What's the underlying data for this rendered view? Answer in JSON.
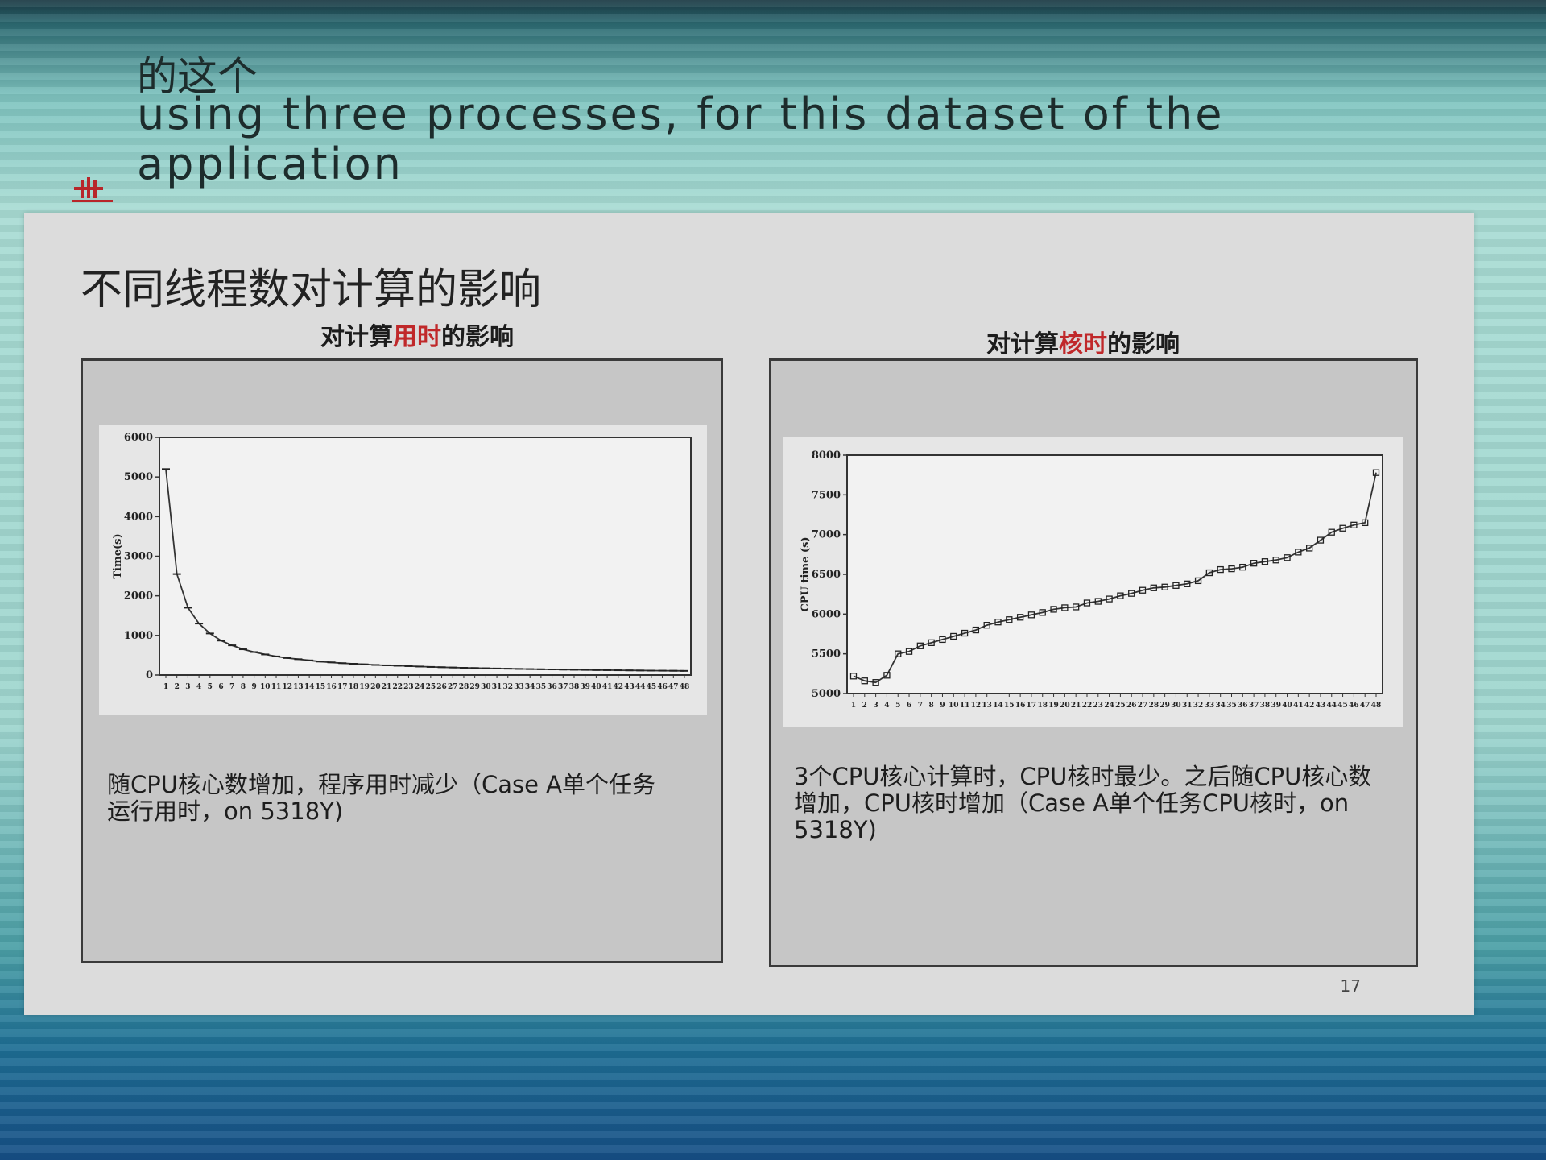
{
  "overlay": {
    "subtitle_zh": "的这个",
    "subtitle_en_line1": "using three processes, for this dataset of the",
    "subtitle_en_line2": "application"
  },
  "slide": {
    "title": "不同线程数对计算的影响",
    "page_number": "17",
    "left_panel": {
      "title_a": "对计算",
      "title_b": "用时",
      "title_c": "的影响",
      "caption_line1": "随CPU核心数增加，程序用时减少（Case A单个任务",
      "caption_line2": "运行用时，on 5318Y)"
    },
    "right_panel": {
      "title_a": "对计算",
      "title_b": "核时",
      "title_c": "的影响",
      "caption_line1": "3个CPU核心计算时，CPU核时最少。之后随CPU核心数",
      "caption_line2": "增加，CPU核时增加（Case A单个任务CPU核时，on",
      "caption_line3": "5318Y)"
    }
  },
  "colors": {
    "highlight": "#c0282a",
    "line": "#333333"
  },
  "chart_data": [
    {
      "type": "line",
      "title": "",
      "xlabel": "",
      "ylabel": "Time(s)",
      "ylim": [
        0,
        6000
      ],
      "yticks": [
        0,
        1000,
        2000,
        3000,
        4000,
        5000,
        6000
      ],
      "x": [
        1,
        2,
        3,
        4,
        5,
        6,
        7,
        8,
        9,
        10,
        11,
        12,
        13,
        14,
        15,
        16,
        17,
        18,
        19,
        20,
        21,
        22,
        23,
        24,
        25,
        26,
        27,
        28,
        29,
        30,
        31,
        32,
        33,
        34,
        35,
        36,
        37,
        38,
        39,
        40,
        41,
        42,
        43,
        44,
        45,
        46,
        47,
        48
      ],
      "series": [
        {
          "values": [
            5200,
            2550,
            1700,
            1300,
            1050,
            870,
            750,
            650,
            580,
            520,
            470,
            430,
            400,
            370,
            340,
            320,
            300,
            285,
            270,
            255,
            245,
            235,
            225,
            215,
            205,
            198,
            190,
            183,
            177,
            171,
            165,
            160,
            155,
            150,
            146,
            142,
            138,
            134,
            130,
            127,
            124,
            121,
            118,
            115,
            112,
            110,
            108,
            105
          ]
        }
      ],
      "grid": false
    },
    {
      "type": "line",
      "title": "",
      "xlabel": "",
      "ylabel": "CPU time (s)",
      "ylim": [
        5000,
        8000
      ],
      "yticks": [
        5000,
        5500,
        6000,
        6500,
        7000,
        7500,
        8000
      ],
      "x": [
        1,
        2,
        3,
        4,
        5,
        6,
        7,
        8,
        9,
        10,
        11,
        12,
        13,
        14,
        15,
        16,
        17,
        18,
        19,
        20,
        21,
        22,
        23,
        24,
        25,
        26,
        27,
        28,
        29,
        30,
        31,
        32,
        33,
        34,
        35,
        36,
        37,
        38,
        39,
        40,
        41,
        42,
        43,
        44,
        45,
        46,
        47,
        48
      ],
      "series": [
        {
          "values": [
            5220,
            5160,
            5140,
            5230,
            5500,
            5530,
            5600,
            5640,
            5680,
            5720,
            5760,
            5800,
            5860,
            5900,
            5930,
            5960,
            5990,
            6020,
            6060,
            6080,
            6090,
            6140,
            6160,
            6190,
            6230,
            6260,
            6300,
            6330,
            6340,
            6360,
            6380,
            6420,
            6520,
            6560,
            6570,
            6590,
            6640,
            6660,
            6680,
            6710,
            6780,
            6830,
            6930,
            7030,
            7080,
            7120,
            7150,
            7780
          ]
        }
      ],
      "grid": false
    }
  ]
}
